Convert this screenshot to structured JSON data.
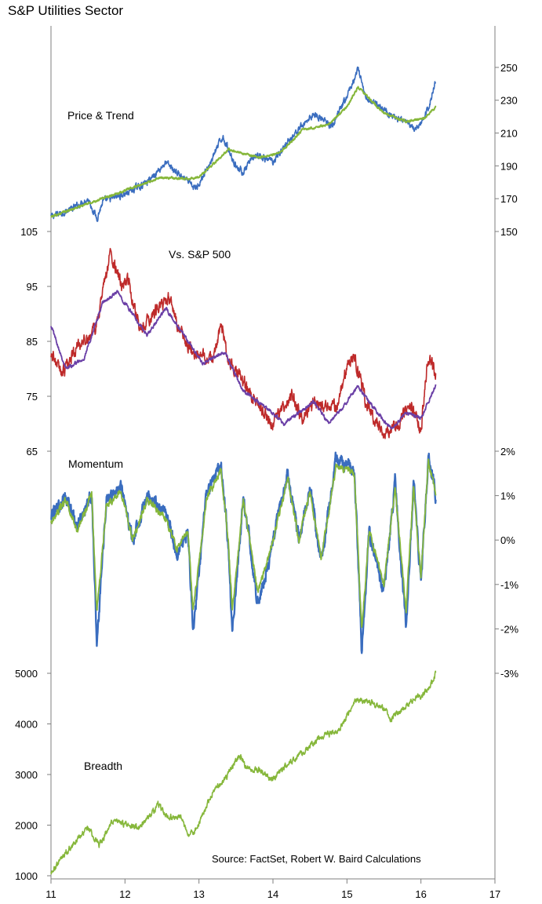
{
  "title": "S&P Utilities Sector",
  "source_note": "Source: FactSet, Robert W. Baird Calculations",
  "colors": {
    "blue": "#3a6dbf",
    "green": "#86b73b",
    "red": "#be2a2a",
    "purple": "#6a3fa6",
    "axis": "#7f7f7f"
  },
  "chart_data": [
    {
      "type": "line",
      "label": "Price & Trend",
      "x_axis": {
        "ticks": [
          11,
          12,
          13,
          14,
          15,
          16,
          17
        ],
        "range": [
          11,
          17
        ]
      },
      "y_axis": {
        "side": "right",
        "range": [
          150,
          260
        ],
        "ticks": [
          150,
          170,
          190,
          210,
          230,
          250
        ]
      },
      "series": [
        {
          "color": "blue",
          "x": [
            11.0,
            11.3,
            11.5,
            11.62,
            11.7,
            12.0,
            12.3,
            12.55,
            12.7,
            12.95,
            13.1,
            13.32,
            13.5,
            13.6,
            13.75,
            14.0,
            14.3,
            14.55,
            14.8,
            15.0,
            15.15,
            15.25,
            15.45,
            15.7,
            15.95,
            16.1,
            16.2
          ],
          "y": [
            159,
            164,
            170,
            158,
            168,
            173,
            180,
            192,
            186,
            176,
            187,
            208,
            190,
            186,
            196,
            193,
            210,
            222,
            214,
            232,
            249,
            232,
            226,
            218,
            212,
            225,
            242
          ]
        },
        {
          "color": "green",
          "x": [
            11.0,
            11.5,
            12.0,
            12.5,
            12.8,
            13.0,
            13.4,
            13.8,
            14.1,
            14.4,
            14.75,
            15.0,
            15.15,
            15.5,
            15.8,
            16.05,
            16.2
          ],
          "y": [
            159,
            167,
            175,
            183,
            182,
            183,
            200,
            195,
            198,
            212,
            215,
            226,
            238,
            222,
            217,
            219,
            226
          ]
        }
      ]
    },
    {
      "type": "line",
      "label": "Vs. S&P 500",
      "y_axis": {
        "side": "left",
        "range": [
          65,
          105
        ],
        "ticks": [
          65,
          75,
          85,
          95,
          105
        ]
      },
      "series": [
        {
          "color": "red",
          "x": [
            11.0,
            11.15,
            11.35,
            11.6,
            11.8,
            11.95,
            12.05,
            12.2,
            12.45,
            12.6,
            12.7,
            12.85,
            13.0,
            13.2,
            13.3,
            13.4,
            13.55,
            13.75,
            14.0,
            14.25,
            14.4,
            14.55,
            14.7,
            14.85,
            15.0,
            15.1,
            15.25,
            15.5,
            15.7,
            15.85,
            16.0,
            16.1,
            16.2
          ],
          "y": [
            83,
            79,
            84,
            87,
            101,
            95,
            96,
            87,
            91,
            93,
            88,
            84,
            82,
            82,
            88,
            81,
            79,
            74,
            70,
            75,
            71,
            74,
            73,
            73,
            80,
            82,
            74,
            68,
            70,
            74,
            69,
            83,
            79
          ]
        },
        {
          "color": "purple",
          "x": [
            11.0,
            11.2,
            11.45,
            11.7,
            11.9,
            12.1,
            12.3,
            12.55,
            12.8,
            13.05,
            13.35,
            13.6,
            13.9,
            14.15,
            14.35,
            14.55,
            14.75,
            14.95,
            15.15,
            15.35,
            15.6,
            15.8,
            16.0,
            16.2
          ],
          "y": [
            88,
            80,
            82,
            92,
            94,
            90,
            86,
            91,
            86,
            81,
            83,
            76,
            73,
            70,
            72,
            74,
            70,
            73,
            77,
            73,
            69,
            72,
            71,
            77
          ]
        }
      ]
    },
    {
      "type": "line",
      "label": "Momentum",
      "y_axis": {
        "side": "right",
        "range": [
          -3,
          2
        ],
        "ticks": [
          "2%",
          "1%",
          "0%",
          "-1%",
          "-2%",
          "-3%"
        ]
      },
      "series": [
        {
          "color": "blue",
          "x": [
            11.0,
            11.2,
            11.35,
            11.55,
            11.62,
            11.75,
            11.95,
            12.1,
            12.3,
            12.55,
            12.7,
            12.85,
            12.92,
            13.1,
            13.3,
            13.4,
            13.45,
            13.6,
            13.8,
            14.0,
            14.2,
            14.35,
            14.5,
            14.65,
            14.85,
            15.0,
            15.1,
            15.2,
            15.3,
            15.5,
            15.65,
            15.8,
            15.9,
            16.0,
            16.1,
            16.2
          ],
          "y": [
            0.5,
            1.0,
            0.3,
            1.1,
            -2.3,
            0.9,
            1.2,
            0.0,
            1.0,
            0.6,
            -0.3,
            0.2,
            -2.1,
            1.0,
            1.7,
            -0.2,
            -2.1,
            1.0,
            -1.5,
            0.0,
            1.5,
            0.0,
            1.2,
            -0.5,
            1.8,
            1.7,
            1.6,
            -2.5,
            0.2,
            -1.2,
            1.3,
            -2.0,
            1.3,
            -1.0,
            1.9,
            1.0
          ]
        },
        {
          "color": "green",
          "x": [
            11.0,
            11.2,
            11.35,
            11.55,
            11.62,
            11.75,
            11.95,
            12.1,
            12.3,
            12.55,
            12.7,
            12.85,
            12.92,
            13.1,
            13.3,
            13.4,
            13.45,
            13.6,
            13.8,
            14.0,
            14.2,
            14.35,
            14.5,
            14.65,
            14.85,
            15.0,
            15.1,
            15.2,
            15.3,
            15.5,
            15.65,
            15.8,
            15.9,
            16.0,
            16.1,
            16.2
          ],
          "y": [
            0.4,
            0.9,
            0.2,
            1.0,
            -1.6,
            0.8,
            1.1,
            0.0,
            0.9,
            0.5,
            -0.2,
            0.2,
            -1.6,
            0.9,
            1.6,
            -0.1,
            -1.6,
            0.9,
            -1.2,
            0.0,
            1.4,
            0.0,
            1.1,
            -0.4,
            1.6,
            1.6,
            1.5,
            -2.0,
            0.2,
            -1.0,
            1.2,
            -1.6,
            1.2,
            -0.8,
            1.8,
            1.0
          ]
        }
      ]
    },
    {
      "type": "line",
      "label": "Breadth",
      "y_axis": {
        "side": "left",
        "range": [
          1000,
          5000
        ],
        "ticks": [
          1000,
          2000,
          3000,
          4000,
          5000
        ]
      },
      "series": [
        {
          "color": "green",
          "x": [
            11.0,
            11.25,
            11.5,
            11.65,
            11.85,
            12.0,
            12.2,
            12.45,
            12.6,
            12.75,
            12.85,
            12.95,
            13.2,
            13.35,
            13.55,
            13.65,
            13.8,
            14.0,
            14.2,
            14.45,
            14.6,
            14.75,
            14.9,
            15.05,
            15.15,
            15.35,
            15.5,
            15.6,
            15.8,
            15.9,
            16.0,
            16.1,
            16.2
          ],
          "y": [
            1050,
            1550,
            1950,
            1600,
            2100,
            2000,
            1950,
            2400,
            2150,
            2200,
            1800,
            1900,
            2700,
            2900,
            3400,
            3100,
            3100,
            2900,
            3200,
            3500,
            3700,
            3800,
            3900,
            4300,
            4500,
            4400,
            4300,
            4100,
            4350,
            4500,
            4550,
            4700,
            5000
          ]
        }
      ]
    }
  ]
}
